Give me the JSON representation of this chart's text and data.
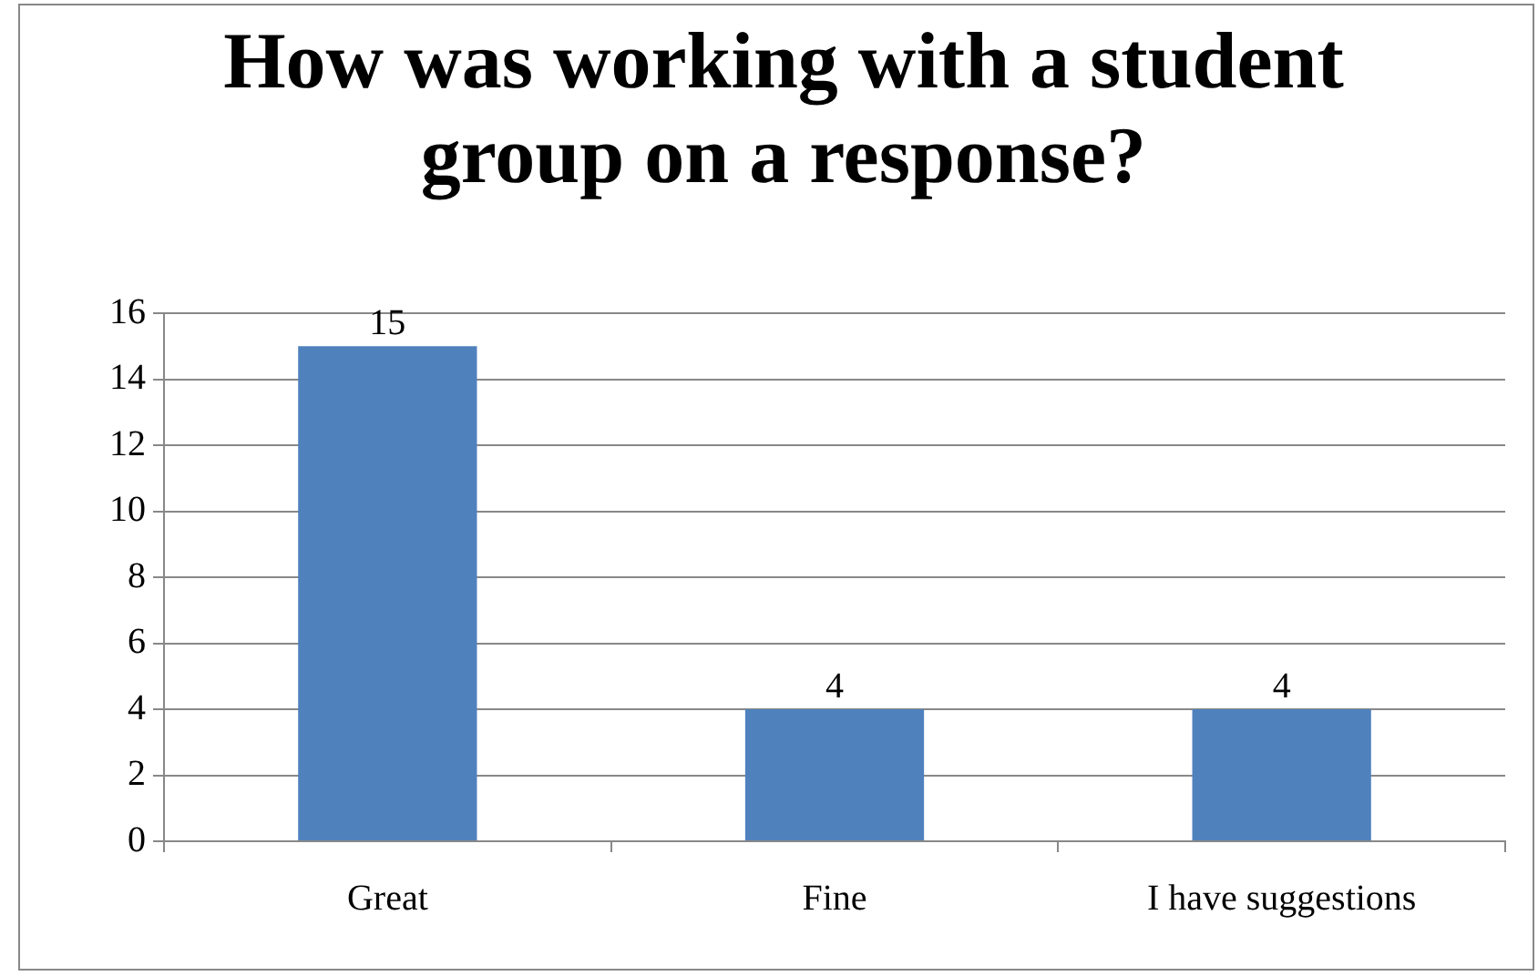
{
  "chart_data": {
    "type": "bar",
    "title": "How was working with a student group on a response?",
    "categories": [
      "Great",
      "Fine",
      "I have suggestions"
    ],
    "values": [
      15,
      4,
      4
    ],
    "color": "#4f81bd",
    "ylim": [
      0,
      16
    ],
    "yticks": [
      0,
      2,
      4,
      6,
      8,
      10,
      12,
      14,
      16
    ],
    "grid": "y",
    "data_labels": true,
    "legend": false
  }
}
